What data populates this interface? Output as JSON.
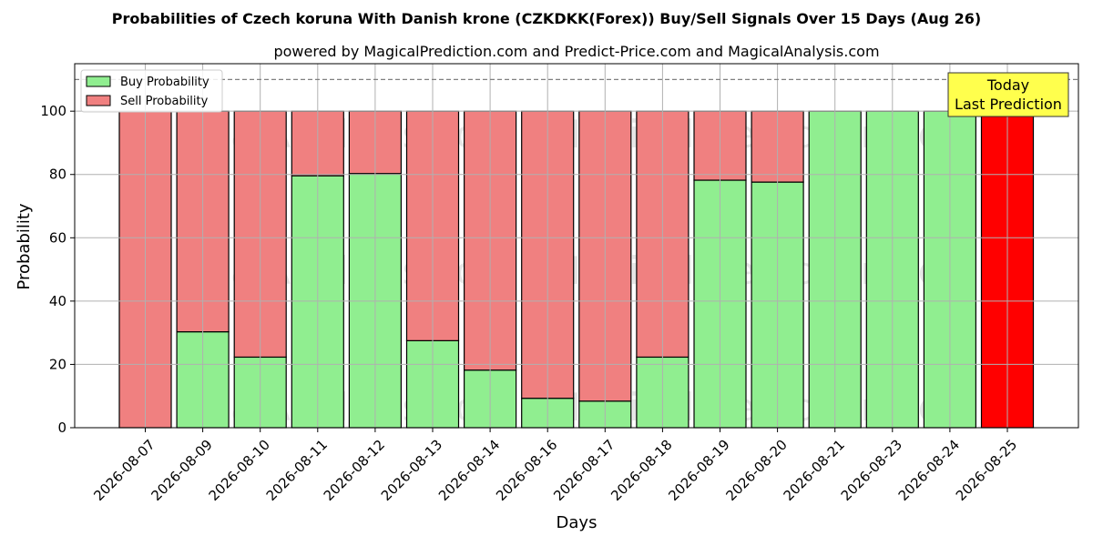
{
  "chart_data": {
    "type": "bar",
    "stacked": true,
    "title": "Probabilities of Czech koruna With Danish krone (CZKDKK(Forex)) Buy/Sell Signals Over 15 Days (Aug 26)",
    "subtitle": "powered by MagicalPrediction.com and Predict-Price.com and MagicalAnalysis.com",
    "xlabel": "Days",
    "ylabel": "Probability",
    "ylim": [
      0,
      115
    ],
    "yticks": [
      0,
      20,
      40,
      60,
      80,
      100
    ],
    "grid": true,
    "legend_position": "top-left",
    "reference_line": 110,
    "categories": [
      "2026-08-07",
      "2026-08-09",
      "2026-08-10",
      "2026-08-11",
      "2026-08-12",
      "2026-08-13",
      "2026-08-14",
      "2026-08-16",
      "2026-08-17",
      "2026-08-18",
      "2026-08-19",
      "2026-08-20",
      "2026-08-21",
      "2026-08-23",
      "2026-08-24",
      "2026-08-25"
    ],
    "series": [
      {
        "name": "Buy Probability",
        "color": "#90ee90",
        "values": [
          0,
          30.3,
          22.3,
          79.6,
          80.3,
          27.5,
          18.2,
          9.3,
          8.4,
          22.3,
          78.2,
          77.6,
          100,
          100,
          100,
          0
        ]
      },
      {
        "name": "Sell Probability",
        "color": "#f08080",
        "values": [
          100,
          69.7,
          77.7,
          20.4,
          19.7,
          72.5,
          81.8,
          90.7,
          91.6,
          77.7,
          21.8,
          22.4,
          0,
          0,
          0,
          100
        ]
      }
    ],
    "highlight": {
      "index": 15,
      "color": "#ff0000"
    },
    "annotation": {
      "lines": [
        "Today",
        "Last Prediction"
      ],
      "background": "#ffff4d"
    },
    "watermarks": [
      "MagicalAnalysis.com",
      "MagicalPrediction.com"
    ]
  }
}
